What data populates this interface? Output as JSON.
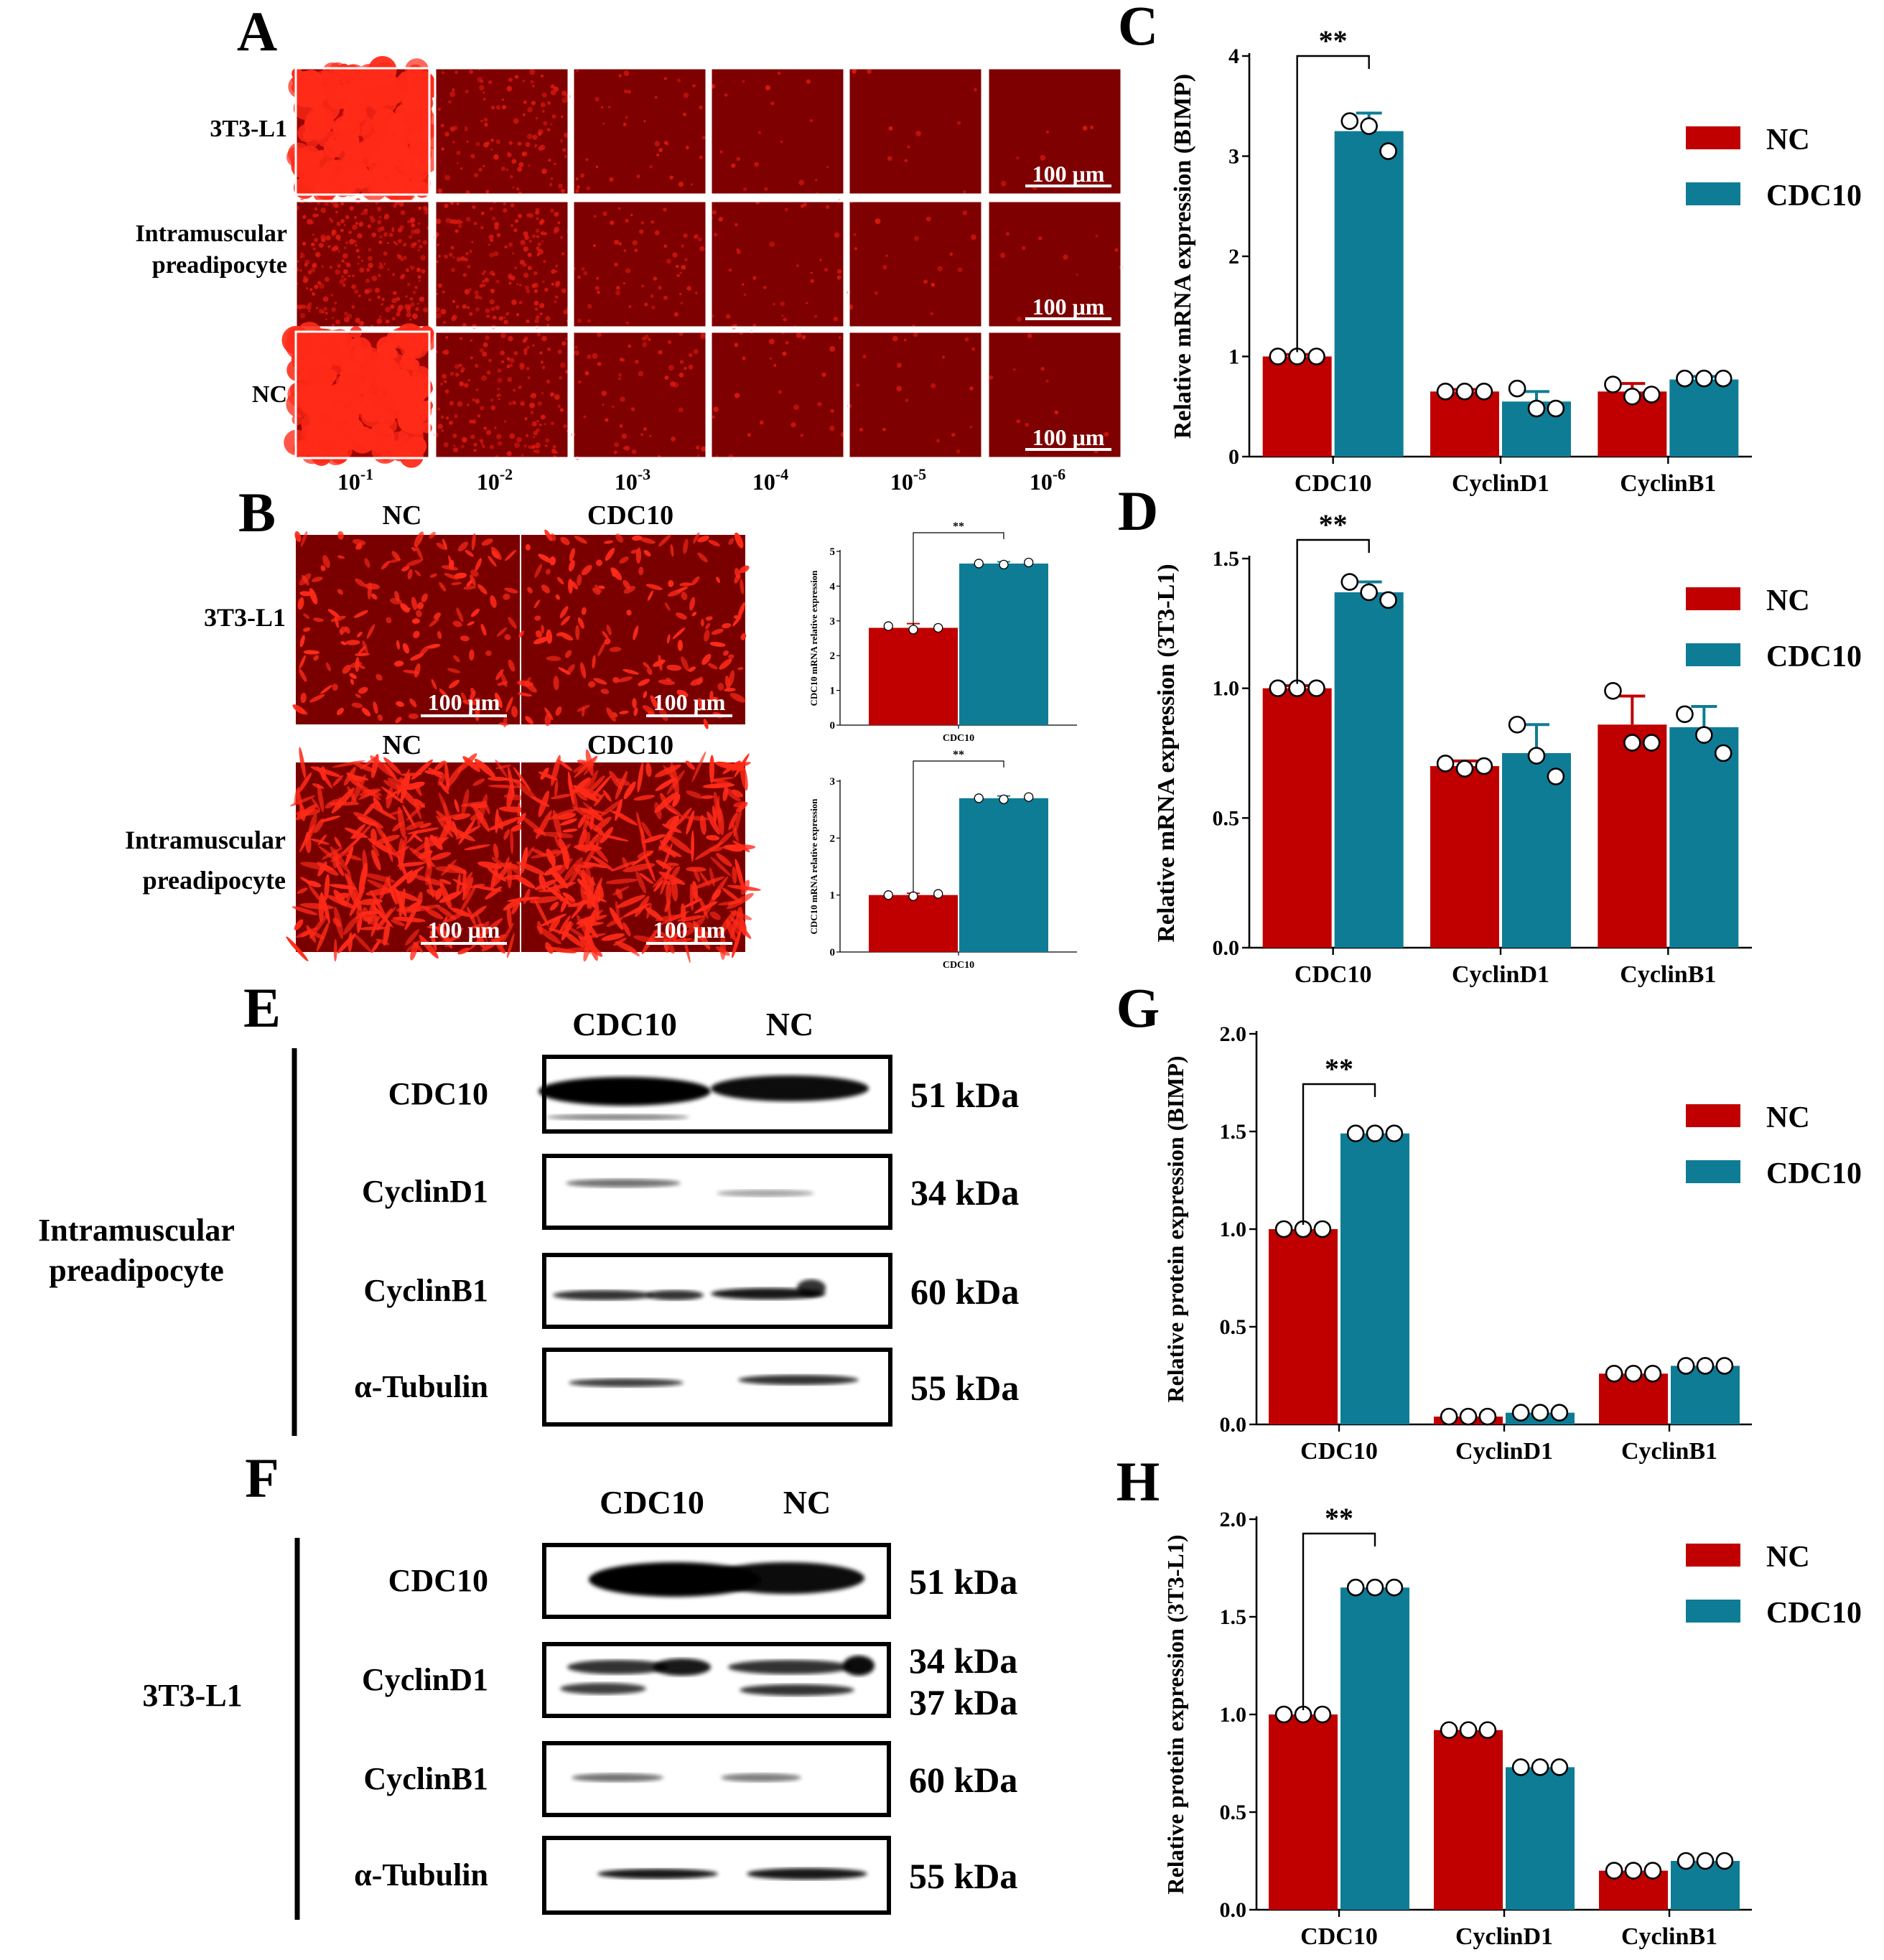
{
  "colors": {
    "nc": "#C00000",
    "cdc10": "#0F7C96",
    "fluor": "#8C0000",
    "fluor_bright": "#E01010"
  },
  "panel_labels": {
    "A": "A",
    "B": "B",
    "C": "C",
    "D": "D",
    "E": "E",
    "F": "F",
    "G": "G",
    "H": "H"
  },
  "panelA": {
    "rows": [
      "3T3-L1",
      "Intramuscular\npreadipocyte",
      "NC"
    ],
    "columns_base": "10",
    "columns_exp": [
      "-1",
      "-2",
      "-3",
      "-4",
      "-5",
      "-6"
    ],
    "scale_bar": "100 μm"
  },
  "panelB": {
    "col_headers": [
      "NC",
      "CDC10"
    ],
    "rows": [
      "3T3-L1",
      "Intramuscular\npreadipocyte"
    ],
    "scale_bar": "100 μm"
  },
  "chart_data": [
    {
      "id": "B-top",
      "type": "bar",
      "categories": [
        "CDC10"
      ],
      "series": [
        {
          "name": "NC",
          "values": [
            2.8
          ],
          "errors": [
            0.12
          ],
          "points": [
            [
              2.85,
              2.75,
              2.8
            ]
          ]
        },
        {
          "name": "CDC10",
          "values": [
            4.65
          ],
          "errors": [
            0.05
          ],
          "points": [
            [
              4.65,
              4.62,
              4.68
            ]
          ]
        }
      ],
      "ylabel": "CDC10 mRNA relative expression",
      "xlabel": "CDC10",
      "ylim": [
        0,
        5
      ],
      "yticks": [
        0,
        1,
        2,
        3,
        4,
        5
      ],
      "significance": [
        {
          "category": "CDC10",
          "label": "**"
        }
      ]
    },
    {
      "id": "B-bottom",
      "type": "bar",
      "categories": [
        "CDC10"
      ],
      "series": [
        {
          "name": "NC",
          "values": [
            1.0
          ],
          "errors": [
            0.03
          ],
          "points": [
            [
              1.0,
              0.98,
              1.02
            ]
          ]
        },
        {
          "name": "CDC10",
          "values": [
            2.7
          ],
          "errors": [
            0.04
          ],
          "points": [
            [
              2.7,
              2.68,
              2.72
            ]
          ]
        }
      ],
      "ylabel": "CDC10 mRNA relative expression",
      "xlabel": "CDC10",
      "ylim": [
        0,
        3
      ],
      "yticks": [
        0,
        1,
        2,
        3
      ],
      "significance": [
        {
          "category": "CDC10",
          "label": "**"
        }
      ]
    },
    {
      "id": "C",
      "type": "bar",
      "categories": [
        "CDC10",
        "CyclinD1",
        "CyclinB1"
      ],
      "series": [
        {
          "name": "NC",
          "values": [
            1.0,
            0.65,
            0.65
          ],
          "errors": [
            0.02,
            0.02,
            0.08
          ],
          "points": [
            [
              1.0,
              1.0,
              1.0
            ],
            [
              0.65,
              0.65,
              0.65
            ],
            [
              0.72,
              0.6,
              0.62
            ]
          ]
        },
        {
          "name": "CDC10",
          "values": [
            3.25,
            0.55,
            0.77
          ],
          "errors": [
            0.18,
            0.1,
            0.03
          ],
          "points": [
            [
              3.35,
              3.3,
              3.05
            ],
            [
              0.68,
              0.48,
              0.48
            ],
            [
              0.78,
              0.78,
              0.78
            ]
          ]
        }
      ],
      "ylabel": "Relative  mRNA expression (BIMP)",
      "ylim": [
        0,
        4
      ],
      "yticks": [
        "0",
        "1",
        "2",
        "3",
        "4"
      ],
      "significance": [
        {
          "category": "CDC10",
          "label": "**"
        }
      ],
      "legend": [
        "NC",
        "CDC10"
      ]
    },
    {
      "id": "D",
      "type": "bar",
      "categories": [
        "CDC10",
        "CyclinD1",
        "CyclinB1"
      ],
      "series": [
        {
          "name": "NC",
          "values": [
            1.0,
            0.7,
            0.86
          ],
          "errors": [
            0.01,
            0.02,
            0.11
          ],
          "points": [
            [
              1.0,
              1.0,
              1.0
            ],
            [
              0.71,
              0.69,
              0.7
            ],
            [
              0.99,
              0.79,
              0.79
            ]
          ]
        },
        {
          "name": "CDC10",
          "values": [
            1.37,
            0.75,
            0.85
          ],
          "errors": [
            0.04,
            0.11,
            0.08
          ],
          "points": [
            [
              1.41,
              1.37,
              1.34
            ],
            [
              0.86,
              0.74,
              0.66
            ],
            [
              0.9,
              0.82,
              0.75
            ]
          ]
        }
      ],
      "ylabel": "Relative  mRNA expression (3T3-L1)",
      "ylim": [
        0,
        1.5
      ],
      "yticks": [
        "0.0",
        "0.5",
        "1.0",
        "1.5"
      ],
      "significance": [
        {
          "category": "CDC10",
          "label": "**"
        }
      ],
      "legend": [
        "NC",
        "CDC10"
      ]
    },
    {
      "id": "G",
      "type": "bar",
      "categories": [
        "CDC10",
        "CyclinD1",
        "CyclinB1"
      ],
      "series": [
        {
          "name": "NC",
          "values": [
            1.0,
            0.04,
            0.26
          ],
          "errors": [
            0,
            0,
            0
          ],
          "points": [
            [
              1.0,
              1.0,
              1.0
            ],
            [
              0.04,
              0.04,
              0.04
            ],
            [
              0.26,
              0.26,
              0.26
            ]
          ]
        },
        {
          "name": "CDC10",
          "values": [
            1.49,
            0.06,
            0.3
          ],
          "errors": [
            0,
            0,
            0
          ],
          "points": [
            [
              1.49,
              1.49,
              1.49
            ],
            [
              0.06,
              0.06,
              0.06
            ],
            [
              0.3,
              0.3,
              0.3
            ]
          ]
        }
      ],
      "ylabel": "Relative protein expression (BIMP)",
      "ylim": [
        0,
        2.0
      ],
      "yticks": [
        "0.0",
        "0.5",
        "1.0",
        "1.5",
        "2.0"
      ],
      "significance": [
        {
          "category": "CDC10",
          "label": "**"
        }
      ],
      "legend": [
        "NC",
        "CDC10"
      ]
    },
    {
      "id": "H",
      "type": "bar",
      "categories": [
        "CDC10",
        "CyclinD1",
        "CyclinB1"
      ],
      "series": [
        {
          "name": "NC",
          "values": [
            1.0,
            0.92,
            0.2
          ],
          "errors": [
            0,
            0,
            0
          ],
          "points": [
            [
              1.0,
              1.0,
              1.0
            ],
            [
              0.92,
              0.92,
              0.92
            ],
            [
              0.2,
              0.2,
              0.2
            ]
          ]
        },
        {
          "name": "CDC10",
          "values": [
            1.65,
            0.73,
            0.25
          ],
          "errors": [
            0,
            0,
            0
          ],
          "points": [
            [
              1.65,
              1.65,
              1.65
            ],
            [
              0.73,
              0.73,
              0.73
            ],
            [
              0.25,
              0.25,
              0.25
            ]
          ]
        }
      ],
      "ylabel": "Relative protein expression (3T3-L1)",
      "ylim": [
        0,
        2.0
      ],
      "yticks": [
        "0.0",
        "0.5",
        "1.0",
        "1.5",
        "2.0"
      ],
      "significance": [
        {
          "category": "CDC10",
          "label": "**"
        }
      ],
      "legend": [
        "NC",
        "CDC10"
      ]
    }
  ],
  "blotE": {
    "side_label": "Intramuscular\npreadipocyte",
    "lanes": [
      "CDC10",
      "NC"
    ],
    "bands": [
      {
        "protein": "CDC10",
        "kda": "51 kDa"
      },
      {
        "protein": "CyclinD1",
        "kda": "34 kDa"
      },
      {
        "protein": "CyclinB1",
        "kda": "60 kDa"
      },
      {
        "protein": "α-Tubulin",
        "kda": "55 kDa"
      }
    ]
  },
  "blotF": {
    "side_label": "3T3-L1",
    "lanes": [
      "CDC10",
      "NC"
    ],
    "bands": [
      {
        "protein": "CDC10",
        "kda": "51 kDa"
      },
      {
        "protein": "CyclinD1",
        "kda": "34 kDa",
        "kda2": "37 kDa"
      },
      {
        "protein": "CyclinB1",
        "kda": "60 kDa"
      },
      {
        "protein": "α-Tubulin",
        "kda": "55 kDa"
      }
    ]
  }
}
